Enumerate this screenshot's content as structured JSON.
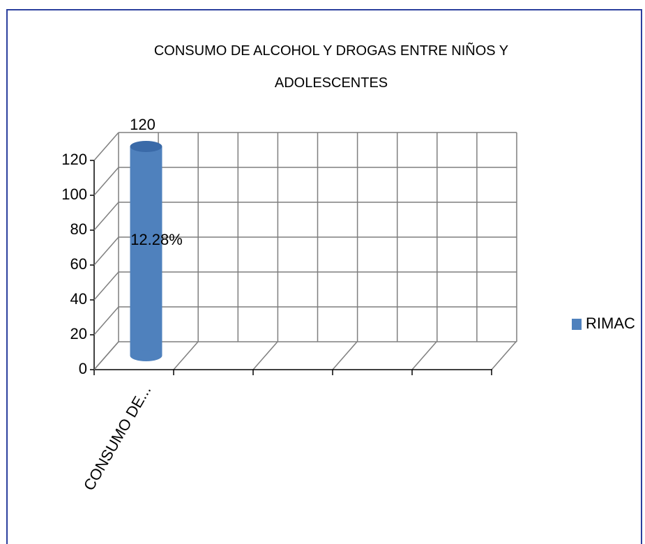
{
  "chart_data": {
    "type": "bar3d",
    "title": "CONSUMO DE ALCOHOL Y DROGAS ENTRE NIÑOS Y ADOLESCENTES",
    "categories": [
      "CONSUMO DE..."
    ],
    "series": [
      {
        "name": "RIMAC",
        "color": "#4f81bd",
        "values": [
          120
        ]
      }
    ],
    "annotation": "12.28%",
    "ylim": [
      0,
      120
    ],
    "yticks": [
      0,
      20,
      40,
      60,
      80,
      100,
      120
    ],
    "grid": true,
    "legend": "right"
  }
}
